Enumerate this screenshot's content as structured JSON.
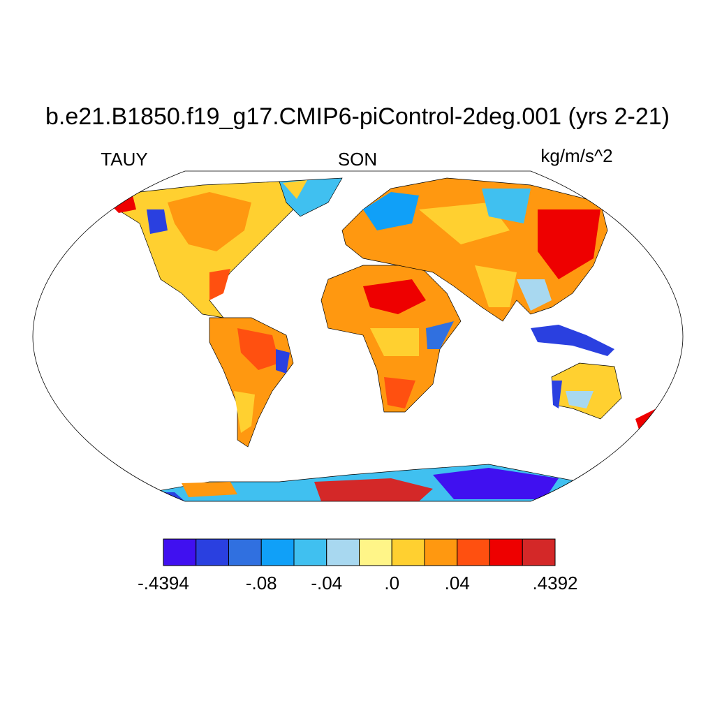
{
  "header": {
    "title": "b.e21.B1850.f19_g17.CMIP6-piControl-2deg.001 (yrs 2-21)",
    "left": "TAUY",
    "center": "SON",
    "right": "kg/m/s^2"
  },
  "colorbar": {
    "colors": [
      "#4010f0",
      "#2a40e0",
      "#3070e0",
      "#10a0f8",
      "#40c0f0",
      "#a8d8f0",
      "#fff588",
      "#ffd030",
      "#ff9810",
      "#ff5010",
      "#ee0000",
      "#d42828"
    ],
    "labels": [
      "-.4394",
      "-.08",
      "-.04",
      ".0",
      ".04",
      ".4392"
    ]
  }
}
